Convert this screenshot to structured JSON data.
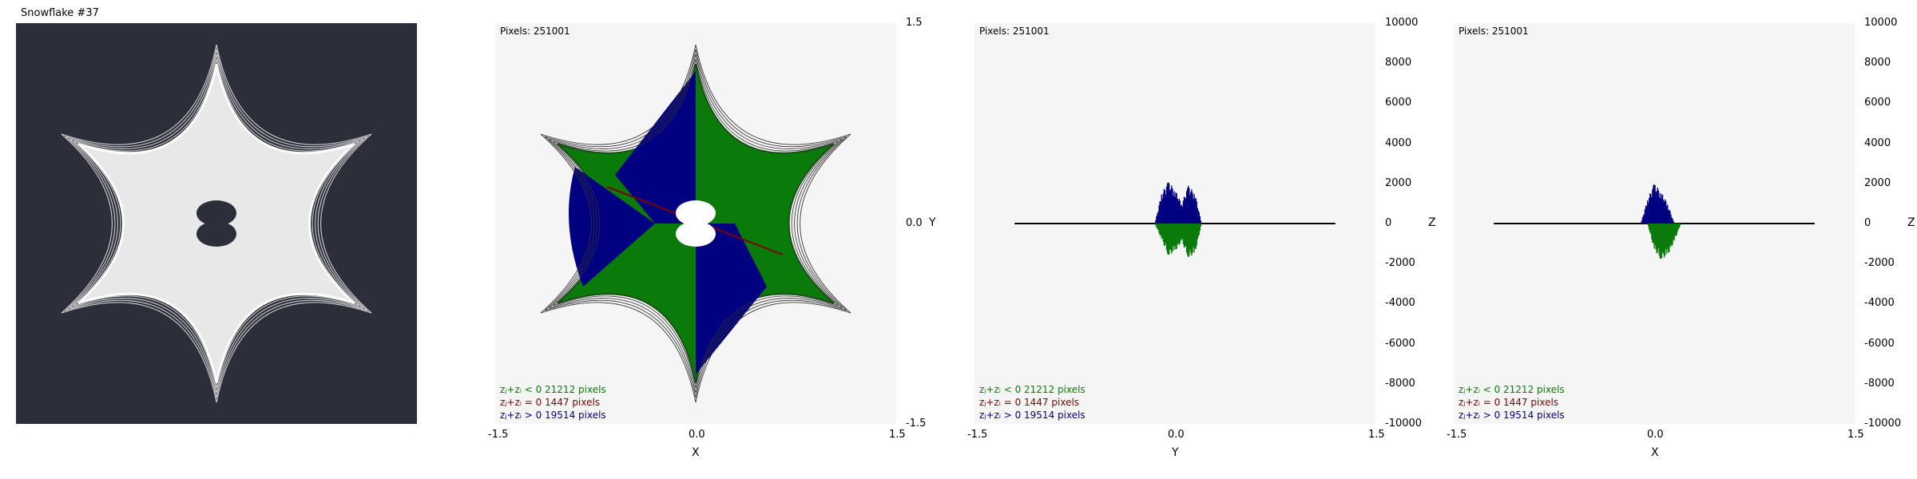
{
  "title": "Snowflake #37",
  "colors": {
    "background_panel": "#2c2f3a",
    "plot_background": "#f5f5f5",
    "positive": "#000080",
    "zero": "#800000",
    "negative": "#0a7a0a"
  },
  "legend": [
    {
      "label": "zⱼ+zᵢ < 0  21212 pixels",
      "color": "#0a7a0a"
    },
    {
      "label": "zⱼ+zᵢ = 0  1447 pixels",
      "color": "#800000"
    },
    {
      "label": "zⱼ+zᵢ > 0  19514 pixels",
      "color": "#000080"
    }
  ],
  "chart_data": [
    {
      "type": "image",
      "title": "Snowflake #37",
      "description_source": "rendered fractal on dark background"
    },
    {
      "type": "scatter",
      "pixels_text": "Pixels: 251001",
      "xlabel": "X",
      "ylabel": "Y",
      "xlim": [
        -1.5,
        1.5
      ],
      "ylim": [
        -1.5,
        1.5
      ],
      "x_ticks": [
        "-1.5",
        "0.0",
        "1.5"
      ],
      "y_ticks": [
        "1.5",
        "0.0",
        "-1.5"
      ],
      "series": [
        {
          "name": "zⱼ+zᵢ < 0",
          "pixels": 21212
        },
        {
          "name": "zⱼ+zᵢ = 0",
          "pixels": 1447
        },
        {
          "name": "zⱼ+zᵢ > 0",
          "pixels": 19514
        }
      ]
    },
    {
      "type": "area",
      "pixels_text": "Pixels: 251001",
      "xlabel": "Y",
      "ylabel": "Z",
      "xlim": [
        -1.5,
        1.5
      ],
      "ylim": [
        -10000,
        10000
      ],
      "x_ticks": [
        "-1.5",
        "0.0",
        "1.5"
      ],
      "y_ticks": [
        "10000",
        "8000",
        "6000",
        "4000",
        "2000",
        "0",
        "-2000",
        "-4000",
        "-6000",
        "-8000",
        "-10000"
      ],
      "series": [
        {
          "name": "zⱼ+zᵢ > 0",
          "x": [
            -0.15,
            -0.1,
            -0.05,
            0.0,
            0.05,
            0.1,
            0.15,
            0.2
          ],
          "y": [
            0,
            1500,
            2100,
            1700,
            1000,
            1900,
            1500,
            0
          ]
        },
        {
          "name": "zⱼ+zᵢ < 0",
          "x": [
            -0.15,
            -0.1,
            -0.05,
            0.0,
            0.05,
            0.1,
            0.15,
            0.2
          ],
          "y": [
            0,
            -800,
            -1600,
            -1400,
            -900,
            -1700,
            -1500,
            0
          ]
        }
      ]
    },
    {
      "type": "area",
      "pixels_text": "Pixels: 251001",
      "xlabel": "X",
      "ylabel": "Z",
      "xlim": [
        -1.5,
        1.5
      ],
      "ylim": [
        -10000,
        10000
      ],
      "x_ticks": [
        "-1.5",
        "0.0",
        "1.5"
      ],
      "y_ticks": [
        "10000",
        "8000",
        "6000",
        "4000",
        "2000",
        "0",
        "-2000",
        "-4000",
        "-6000",
        "-8000",
        "-10000"
      ],
      "series": [
        {
          "name": "zⱼ+zᵢ > 0",
          "x": [
            -0.1,
            -0.05,
            0.0,
            0.05,
            0.1,
            0.15
          ],
          "y": [
            0,
            1200,
            2000,
            1600,
            1000,
            0
          ]
        },
        {
          "name": "zⱼ+zᵢ < 0",
          "x": [
            -0.05,
            0.0,
            0.05,
            0.1,
            0.15,
            0.2
          ],
          "y": [
            0,
            -1300,
            -1800,
            -1600,
            -900,
            0
          ]
        }
      ]
    }
  ]
}
